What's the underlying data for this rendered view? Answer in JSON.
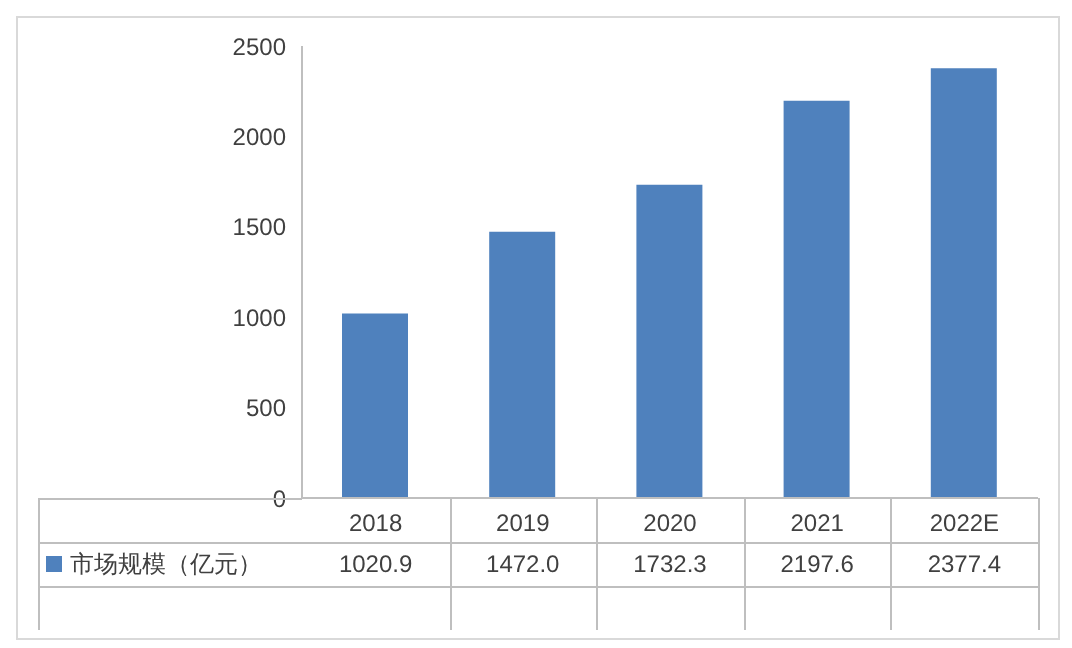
{
  "chart_data": {
    "type": "bar",
    "categories": [
      "2018",
      "2019",
      "2020",
      "2021",
      "2022E"
    ],
    "series": [
      {
        "name": "市场规模（亿元）",
        "color": "#4f81bd",
        "values": [
          1020.9,
          1472.0,
          1732.3,
          2197.6,
          2377.4
        ],
        "value_labels": [
          "1020.9",
          "1472.0",
          "1732.3",
          "2197.6",
          "2377.4"
        ]
      }
    ],
    "ylim": [
      0,
      2500
    ],
    "yticks": [
      0,
      500,
      1000,
      1500,
      2000,
      2500
    ],
    "grid": false,
    "legend": "bottom"
  }
}
